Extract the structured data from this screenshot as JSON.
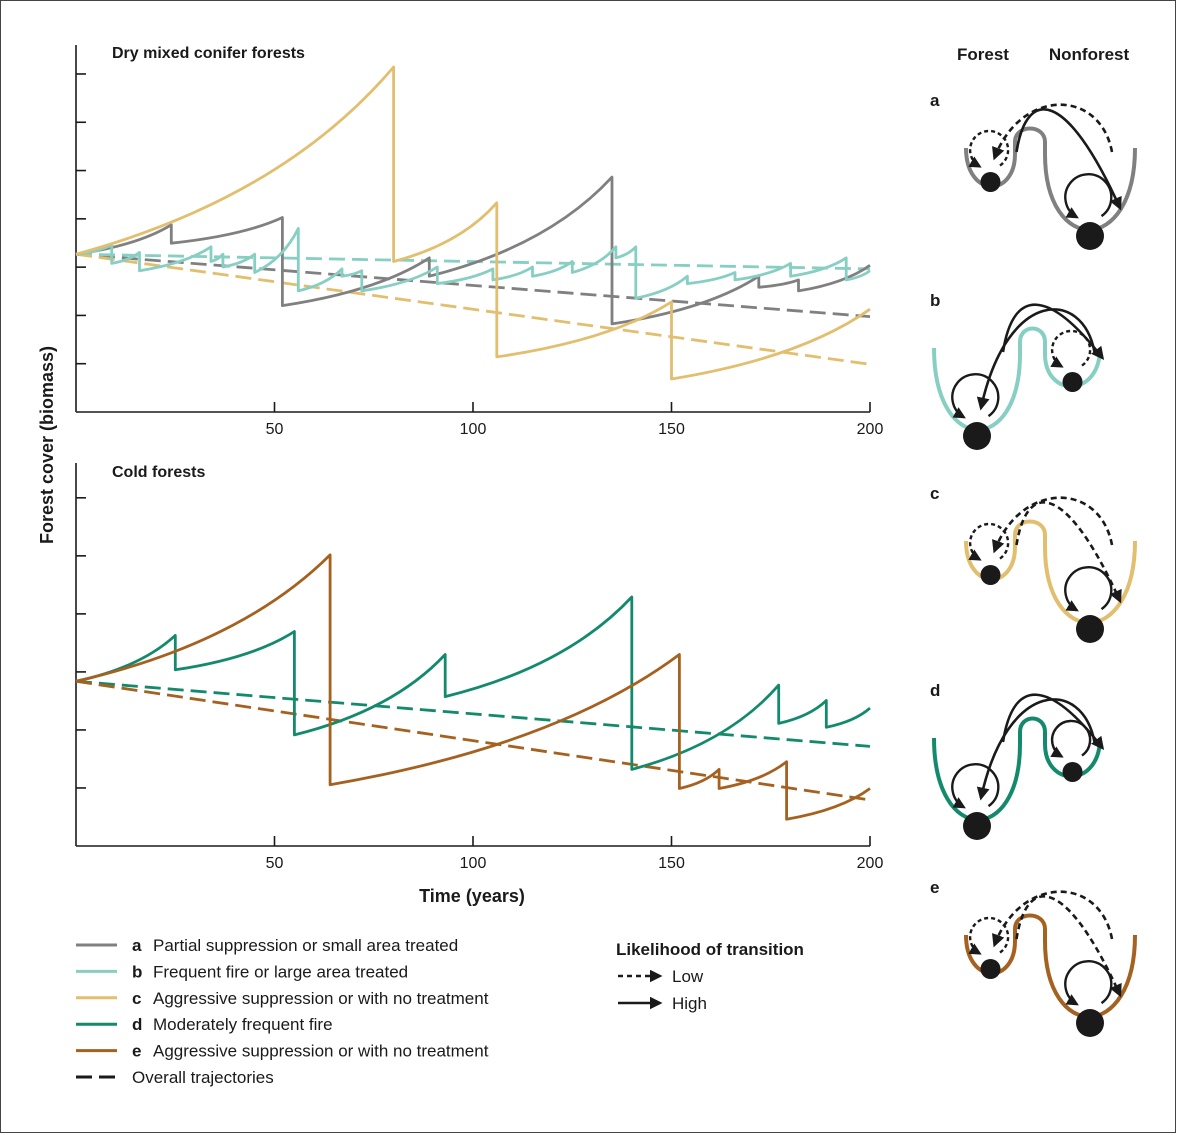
{
  "colors": {
    "a": "#808080",
    "b": "#86cfc2",
    "c": "#e2be6f",
    "d": "#148a6c",
    "e": "#a5611f",
    "black": "#1a1a1a"
  },
  "labels": {
    "y_axis": "Forest cover (biomass)",
    "x_axis": "Time (years)",
    "forest": "Forest",
    "nonforest": "Nonforest",
    "likelihood_title": "Likelihood of transition",
    "low": "Low",
    "high": "High"
  },
  "legend": [
    {
      "key": "a",
      "text": "Partial suppression or small area treated",
      "style": "solid",
      "color_key": "a"
    },
    {
      "key": "b",
      "text": "Frequent fire or large area treated",
      "style": "solid",
      "color_key": "b"
    },
    {
      "key": "c",
      "text": "Aggressive suppression or with no treatment",
      "style": "solid",
      "color_key": "c"
    },
    {
      "key": "d",
      "text": "Moderately frequent fire",
      "style": "solid",
      "color_key": "d"
    },
    {
      "key": "e",
      "text": "Aggressive suppression or with no treatment",
      "style": "solid",
      "color_key": "e"
    },
    {
      "key": "",
      "text": "Overall trajectories",
      "style": "dashed",
      "color_key": "black"
    }
  ],
  "chart_data": [
    {
      "type": "line",
      "title": "Dry mixed conifer forests",
      "xlabel": "",
      "ylabel": "Forest cover (biomass)",
      "xlim": [
        0,
        200
      ],
      "ylim": [
        0,
        10
      ],
      "x_ticks": [
        50,
        100,
        150,
        200
      ],
      "y_tick_count": 7,
      "series": [
        {
          "key": "a",
          "color_key": "a",
          "style": "solid",
          "points": [
            [
              0,
              4.3
            ],
            [
              24,
              5.1
            ],
            [
              24,
              4.6
            ],
            [
              52,
              5.3
            ],
            [
              52,
              2.9
            ],
            [
              89,
              4.2
            ],
            [
              89,
              3.7
            ],
            [
              135,
              6.4
            ],
            [
              135,
              2.4
            ],
            [
              172,
              3.7
            ],
            [
              172,
              3.4
            ],
            [
              182,
              3.6
            ],
            [
              182,
              3.3
            ],
            [
              200,
              4.0
            ]
          ]
        },
        {
          "key": "b",
          "color_key": "b",
          "style": "solid",
          "points": [
            [
              0,
              4.3
            ],
            [
              9,
              4.55
            ],
            [
              9,
              4.05
            ],
            [
              16,
              4.35
            ],
            [
              16,
              3.85
            ],
            [
              34,
              4.5
            ],
            [
              34,
              4.1
            ],
            [
              37,
              4.3
            ],
            [
              37,
              3.95
            ],
            [
              45,
              4.3
            ],
            [
              45,
              3.8
            ],
            [
              56,
              5.0
            ],
            [
              56,
              3.3
            ],
            [
              67,
              3.9
            ],
            [
              67,
              3.7
            ],
            [
              72,
              3.85
            ],
            [
              72,
              3.3
            ],
            [
              91,
              3.95
            ],
            [
              91,
              3.5
            ],
            [
              105,
              3.9
            ],
            [
              105,
              3.6
            ],
            [
              115,
              3.95
            ],
            [
              115,
              3.7
            ],
            [
              125,
              4.1
            ],
            [
              125,
              3.8
            ],
            [
              136,
              4.5
            ],
            [
              136,
              4.2
            ],
            [
              141,
              4.5
            ],
            [
              141,
              3.1
            ],
            [
              154,
              3.7
            ],
            [
              154,
              3.5
            ],
            [
              166,
              3.8
            ],
            [
              166,
              3.6
            ],
            [
              180,
              4.05
            ],
            [
              180,
              3.7
            ],
            [
              194,
              4.2
            ],
            [
              194,
              3.6
            ],
            [
              200,
              3.85
            ]
          ]
        },
        {
          "key": "c",
          "color_key": "c",
          "style": "solid",
          "points": [
            [
              0,
              4.3
            ],
            [
              80,
              9.4
            ],
            [
              80,
              4.1
            ],
            [
              106,
              5.7
            ],
            [
              106,
              1.5
            ],
            [
              150,
              3.0
            ],
            [
              150,
              0.9
            ],
            [
              200,
              2.8
            ]
          ]
        },
        {
          "key": "a-trend",
          "color_key": "a",
          "style": "dashed",
          "points": [
            [
              0,
              4.3
            ],
            [
              200,
              2.6
            ]
          ]
        },
        {
          "key": "b-trend",
          "color_key": "b",
          "style": "dashed",
          "points": [
            [
              0,
              4.3
            ],
            [
              200,
              3.9
            ]
          ]
        },
        {
          "key": "c-trend",
          "color_key": "c",
          "style": "dashed",
          "points": [
            [
              0,
              4.3
            ],
            [
              200,
              1.3
            ]
          ]
        }
      ]
    },
    {
      "type": "line",
      "title": "Cold forests",
      "xlabel": "Time (years)",
      "ylabel": "Forest cover (biomass)",
      "xlim": [
        0,
        200
      ],
      "ylim": [
        0,
        10
      ],
      "x_ticks": [
        50,
        100,
        150,
        200
      ],
      "y_tick_count": 6,
      "series": [
        {
          "key": "d",
          "color_key": "d",
          "style": "solid",
          "points": [
            [
              0,
              4.3
            ],
            [
              25,
              5.5
            ],
            [
              25,
              4.6
            ],
            [
              55,
              5.6
            ],
            [
              55,
              2.9
            ],
            [
              93,
              5.0
            ],
            [
              93,
              3.9
            ],
            [
              140,
              6.5
            ],
            [
              140,
              2.0
            ],
            [
              177,
              4.2
            ],
            [
              177,
              3.2
            ],
            [
              189,
              3.8
            ],
            [
              189,
              3.1
            ],
            [
              200,
              3.6
            ]
          ]
        },
        {
          "key": "e",
          "color_key": "e",
          "style": "solid",
          "points": [
            [
              0,
              4.3
            ],
            [
              64,
              7.6
            ],
            [
              64,
              1.6
            ],
            [
              152,
              5.0
            ],
            [
              152,
              1.5
            ],
            [
              162,
              2.0
            ],
            [
              162,
              1.5
            ],
            [
              179,
              2.2
            ],
            [
              179,
              0.7
            ],
            [
              200,
              1.5
            ]
          ]
        },
        {
          "key": "d-trend",
          "color_key": "d",
          "style": "dashed",
          "points": [
            [
              0,
              4.3
            ],
            [
              200,
              2.6
            ]
          ]
        },
        {
          "key": "e-trend",
          "color_key": "e",
          "style": "dashed",
          "points": [
            [
              0,
              4.3
            ],
            [
              200,
              1.2
            ]
          ]
        }
      ]
    }
  ],
  "panels": [
    {
      "letter": "a",
      "color_key": "a",
      "forest_basin": "small",
      "nonforest_basin": "large",
      "arc_left": "dashed",
      "arc_right": "solid",
      "loop_left": "dashed",
      "loop_right": "solid"
    },
    {
      "letter": "b",
      "color_key": "b",
      "forest_basin": "large",
      "nonforest_basin": "small",
      "arc_left": "solid",
      "arc_right": "solid",
      "loop_left": "solid",
      "loop_right": "dashed"
    },
    {
      "letter": "c",
      "color_key": "c",
      "forest_basin": "small",
      "nonforest_basin": "large",
      "arc_left": "dashed",
      "arc_right": "dashed",
      "loop_left": "dashed",
      "loop_right": "solid"
    },
    {
      "letter": "d",
      "color_key": "d",
      "forest_basin": "large",
      "nonforest_basin": "small",
      "arc_left": "solid",
      "arc_right": "solid",
      "loop_left": "solid",
      "loop_right": "solid"
    },
    {
      "letter": "e",
      "color_key": "e",
      "forest_basin": "small",
      "nonforest_basin": "large",
      "arc_left": "dashed",
      "arc_right": "dashed",
      "loop_left": "dashed",
      "loop_right": "solid"
    }
  ]
}
